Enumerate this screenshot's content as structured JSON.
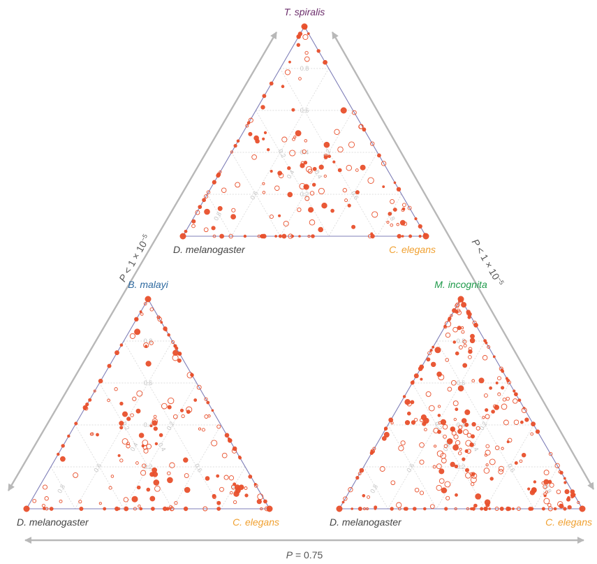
{
  "figure": {
    "comparisons": [
      {
        "label_prefix": "P",
        "label_rest": " < 1 × 10",
        "label_exp": "−5"
      },
      {
        "label_prefix": "P",
        "label_rest": " < 1 × 10",
        "label_exp": "−5"
      },
      {
        "label_prefix": "P",
        "label_rest": " = 0.75",
        "label_exp": ""
      }
    ]
  },
  "chart_data": [
    {
      "type": "scatter",
      "subtype": "ternary",
      "top_label": "T. spiralis",
      "left_label": "D. melanogaster",
      "right_label": "C. elegans",
      "top_label_color": "#6b2d6b",
      "left_label_color": "#444444",
      "right_label_color": "#f0a030",
      "tick_labels": [
        "0.2",
        "0.4",
        "0.6",
        "0.8"
      ],
      "grid": true,
      "seed": 11,
      "n_interior": 105,
      "n_edge": 58,
      "corner_weights": {
        "top": 0.05,
        "left": 0.06,
        "right": 0.05
      }
    },
    {
      "type": "scatter",
      "subtype": "ternary",
      "top_label": "B. malayi",
      "left_label": "D. melanogaster",
      "right_label": "C. elegans",
      "top_label_color": "#2e6aa0",
      "left_label_color": "#444444",
      "right_label_color": "#f0a030",
      "tick_labels": [
        "0.2",
        "0.4",
        "0.6",
        "0.8"
      ],
      "grid": true,
      "seed": 23,
      "n_interior": 120,
      "n_edge": 64,
      "corner_weights": {
        "top": 0.03,
        "left": 0.08,
        "right": 0.1
      }
    },
    {
      "type": "scatter",
      "subtype": "ternary",
      "top_label": "M. incognita",
      "left_label": "D. melanogaster",
      "right_label": "C. elegans",
      "top_label_color": "#1e9a4a",
      "left_label_color": "#444444",
      "right_label_color": "#f0a030",
      "tick_labels": [
        "0.2",
        "0.4",
        "0.6",
        "0.8"
      ],
      "grid": true,
      "seed": 37,
      "n_interior": 200,
      "n_edge": 95,
      "corner_weights": {
        "top": 0.14,
        "left": 0.04,
        "right": 0.1
      }
    }
  ],
  "colors": {
    "point": "#e8502c",
    "triangle_edge": "#7f7fb8",
    "grid": "#d2d2d2",
    "arrow": "#b8b8b8"
  }
}
